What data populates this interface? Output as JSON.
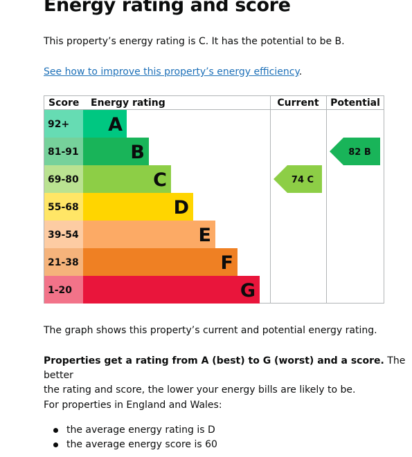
{
  "heading": "Energy rating and score",
  "intro": "This property’s energy rating is C. It has the potential to be B.",
  "improve_link": "See how to improve this property’s energy efficiency",
  "improve_link_suffix": ".",
  "table_headers": {
    "score": "Score",
    "rating": "Energy rating",
    "current": "Current",
    "potential": "Potential"
  },
  "bands": [
    {
      "score": "92+",
      "letter": "A",
      "color": "#00c781",
      "score_bg": "#66dcb3"
    },
    {
      "score": "81-91",
      "letter": "B",
      "color": "#19b459",
      "score_bg": "#76d19b"
    },
    {
      "score": "69-80",
      "letter": "C",
      "color": "#8dce46",
      "score_bg": "#bae291"
    },
    {
      "score": "55-68",
      "letter": "D",
      "color": "#ffd500",
      "score_bg": "#ffe666"
    },
    {
      "score": "39-54",
      "letter": "E",
      "color": "#fcaa65",
      "score_bg": "#fdcca3"
    },
    {
      "score": "21-38",
      "letter": "F",
      "color": "#ef8023",
      "score_bg": "#f5b37b"
    },
    {
      "score": "1-20",
      "letter": "G",
      "color": "#e9153b",
      "score_bg": "#f27389"
    }
  ],
  "current": {
    "label": "74 C",
    "band": "C",
    "color": "#8dce46"
  },
  "potential": {
    "label": "82 B",
    "band": "B",
    "color": "#19b459"
  },
  "graph_note": "The graph shows this property’s current and potential energy rating.",
  "info_bold": "Properties get a rating from A (best) to G (worst) and a score.",
  "info_rest_line1": "The better",
  "info_rest_line2": "the rating and score, the lower your energy bills are likely to be.",
  "england_wales": "For properties in England and Wales:",
  "averages": [
    "the average energy rating is D",
    "the average energy score is 60"
  ]
}
